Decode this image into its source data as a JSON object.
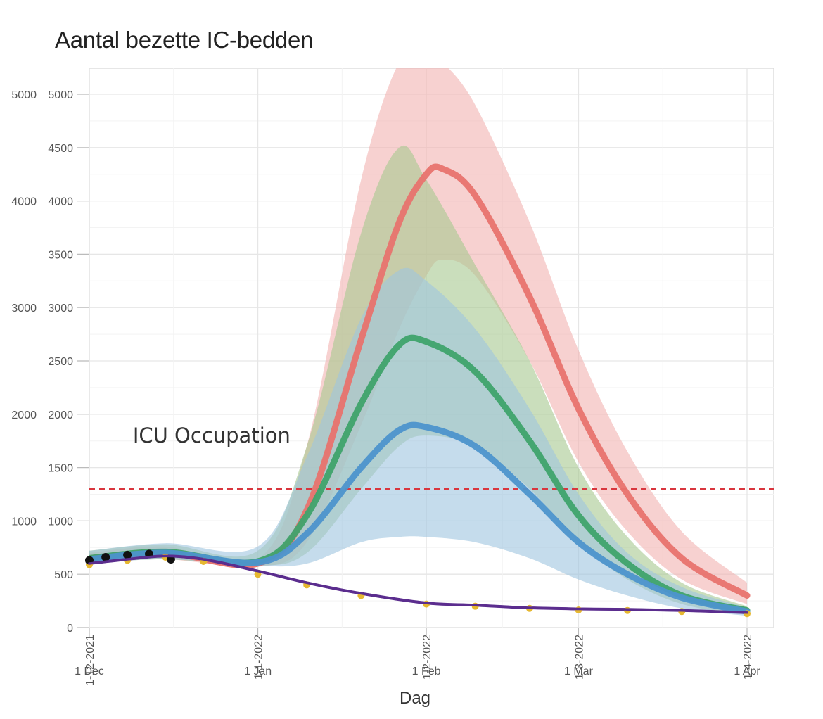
{
  "chart_data": {
    "type": "line",
    "title": "Aantal bezette IC-bedden",
    "xlabel": "Dag",
    "ylabel": "",
    "ylim": [
      0,
      5000
    ],
    "yticks": [
      0,
      500,
      1000,
      1500,
      2000,
      2500,
      3000,
      3500,
      4000,
      4500,
      5000
    ],
    "yticks_overlay": [
      1000,
      2000,
      3000,
      4000,
      5000
    ],
    "xlim": [
      "2021-12-01",
      "2022-04-01"
    ],
    "xticks": [
      "2021-12-01",
      "2022-01-01",
      "2022-02-01",
      "2022-03-01",
      "2022-04-01"
    ],
    "xtick_labels": [
      "1 Dec",
      "1 Jan",
      "1 Feb",
      "1 Mar",
      "1 Apr"
    ],
    "xtick_labels_rotated": [
      "1-12-2021",
      "1-1-2022",
      "1-2-2022",
      "1-3-2022",
      "1-4-2022"
    ],
    "grid": true,
    "annotations": [
      {
        "text": "ICU Occupation",
        "x": "2021-12-09",
        "y": 1800
      }
    ],
    "hlines": [
      {
        "y": 1300,
        "style": "dashed",
        "color": "#d9363e"
      }
    ],
    "series": [
      {
        "color": "#e8736e",
        "band_color": "#f2b3b0",
        "x": [
          "2021-12-01",
          "2021-12-15",
          "2022-01-01",
          "2022-01-10",
          "2022-01-20",
          "2022-01-27",
          "2022-02-01",
          "2022-02-04",
          "2022-02-10",
          "2022-02-20",
          "2022-03-01",
          "2022-03-10",
          "2022-03-20",
          "2022-04-01"
        ],
        "y": [
          650,
          700,
          600,
          1100,
          2700,
          3800,
          4250,
          4300,
          4050,
          3100,
          2050,
          1250,
          650,
          300
        ],
        "lower": [
          600,
          640,
          570,
          800,
          1900,
          2800,
          3300,
          3450,
          3300,
          2500,
          1550,
          900,
          450,
          220
        ],
        "upper": [
          700,
          760,
          640,
          1700,
          4200,
          5300,
          5400,
          5300,
          4900,
          3800,
          2600,
          1650,
          900,
          420
        ]
      },
      {
        "color": "#3fa36b",
        "band_color": "#a7c88f",
        "x": [
          "2021-12-01",
          "2021-12-15",
          "2022-01-01",
          "2022-01-10",
          "2022-01-20",
          "2022-01-27",
          "2022-02-01",
          "2022-02-10",
          "2022-02-20",
          "2022-03-01",
          "2022-03-10",
          "2022-03-20",
          "2022-04-01"
        ],
        "y": [
          650,
          710,
          620,
          1050,
          2100,
          2650,
          2680,
          2400,
          1750,
          1050,
          600,
          300,
          160
        ],
        "lower": [
          600,
          640,
          580,
          700,
          1300,
          1700,
          1800,
          1700,
          1300,
          800,
          450,
          220,
          120
        ],
        "upper": [
          720,
          780,
          720,
          1700,
          3700,
          4500,
          4200,
          3400,
          2500,
          1500,
          850,
          420,
          200
        ]
      },
      {
        "color": "#4d94cc",
        "band_color": "#9ec5df",
        "x": [
          "2021-12-01",
          "2021-12-15",
          "2022-01-01",
          "2022-01-10",
          "2022-01-20",
          "2022-01-27",
          "2022-02-01",
          "2022-02-10",
          "2022-02-20",
          "2022-03-01",
          "2022-03-10",
          "2022-03-20",
          "2022-04-01"
        ],
        "y": [
          640,
          700,
          610,
          880,
          1500,
          1850,
          1880,
          1700,
          1250,
          800,
          500,
          280,
          150
        ],
        "lower": [
          600,
          640,
          580,
          600,
          800,
          850,
          850,
          800,
          650,
          450,
          300,
          180,
          110
        ],
        "upper": [
          720,
          790,
          760,
          1600,
          2900,
          3350,
          3250,
          2800,
          2050,
          1250,
          700,
          380,
          190
        ]
      },
      {
        "color": "#5b2d8e",
        "x": [
          "2021-12-01",
          "2021-12-08",
          "2021-12-15",
          "2021-12-22",
          "2022-01-01",
          "2022-01-10",
          "2022-01-20",
          "2022-02-01",
          "2022-02-10",
          "2022-02-20",
          "2022-03-01",
          "2022-03-10",
          "2022-03-20",
          "2022-04-01"
        ],
        "y": [
          600,
          640,
          670,
          640,
          530,
          420,
          320,
          230,
          210,
          185,
          175,
          170,
          160,
          140
        ]
      },
      {
        "color": "#e6b830",
        "style": "points",
        "x": [
          "2021-12-01",
          "2021-12-08",
          "2021-12-15",
          "2021-12-22",
          "2022-01-01",
          "2022-01-10",
          "2022-01-20",
          "2022-02-01",
          "2022-02-10",
          "2022-02-20",
          "2022-03-01",
          "2022-03-10",
          "2022-03-20",
          "2022-04-01"
        ],
        "y": [
          590,
          630,
          660,
          620,
          500,
          400,
          300,
          220,
          200,
          180,
          165,
          160,
          150,
          130
        ]
      },
      {
        "color": "#111111",
        "style": "points",
        "x": [
          "2021-12-01",
          "2021-12-04",
          "2021-12-08",
          "2021-12-12",
          "2021-12-16"
        ],
        "y": [
          630,
          660,
          680,
          690,
          640
        ]
      }
    ]
  }
}
